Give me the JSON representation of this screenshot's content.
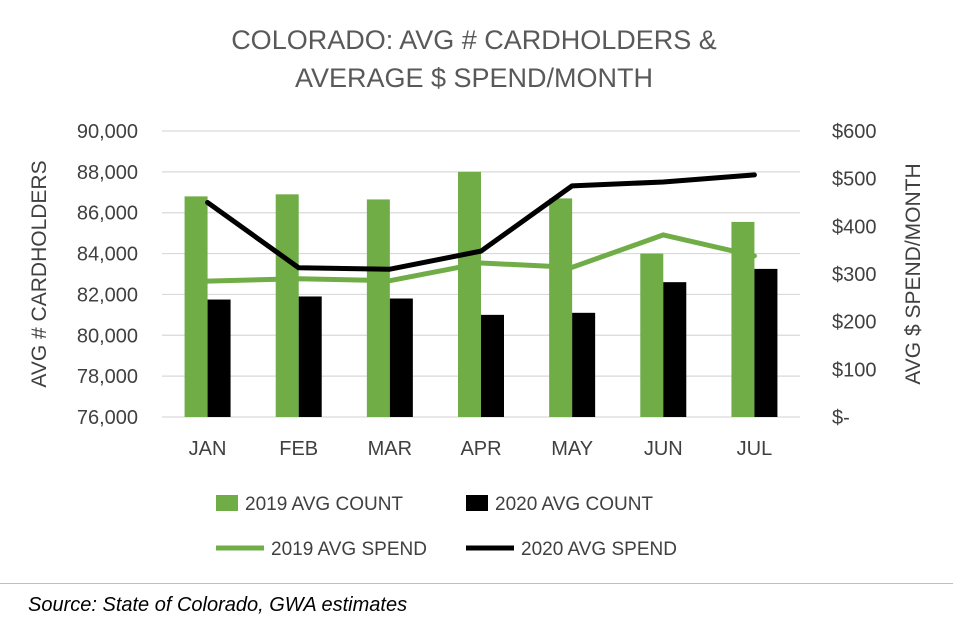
{
  "chart_data": {
    "type": "bar",
    "title_lines": [
      "COLORADO: AVG  # CARDHOLDERS &",
      "AVERAGE $ SPEND/MONTH"
    ],
    "categories": [
      "JAN",
      "FEB",
      "MAR",
      "APR",
      "MAY",
      "JUN",
      "JUL"
    ],
    "ylabel": "AVG # CARDHOLDERS",
    "y2label": "AVG $ SPEND/MONTH",
    "ylim": [
      76000,
      90000
    ],
    "y2lim": [
      0,
      600
    ],
    "y_ticks": [
      "90,000",
      "88,000",
      "86,000",
      "84,000",
      "82,000",
      "80,000",
      "78,000",
      "76,000"
    ],
    "y2_ticks": [
      "$600",
      "$500",
      "$400",
      "$300",
      "$200",
      "$100",
      "$-"
    ],
    "grid": true,
    "legend_position": "bottom",
    "series": [
      {
        "name": "2019 AVG COUNT",
        "type": "bar",
        "axis": "left",
        "color": "#70ad47",
        "values": [
          86800,
          86900,
          86650,
          88000,
          86700,
          84000,
          85550
        ]
      },
      {
        "name": "2020 AVG COUNT",
        "type": "bar",
        "axis": "left",
        "color": "#000000",
        "values": [
          81750,
          81900,
          81800,
          81000,
          81100,
          82600,
          83250
        ]
      },
      {
        "name": "2019 AVG SPEND",
        "type": "line",
        "axis": "right",
        "color": "#70ad47",
        "values": [
          285,
          290,
          286,
          323,
          314,
          382,
          338
        ]
      },
      {
        "name": "2020 AVG SPEND",
        "type": "line",
        "axis": "right",
        "color": "#000000",
        "values": [
          450,
          313,
          310,
          348,
          485,
          493,
          508
        ]
      }
    ]
  },
  "source": "Source: State of Colorado, GWA estimates"
}
